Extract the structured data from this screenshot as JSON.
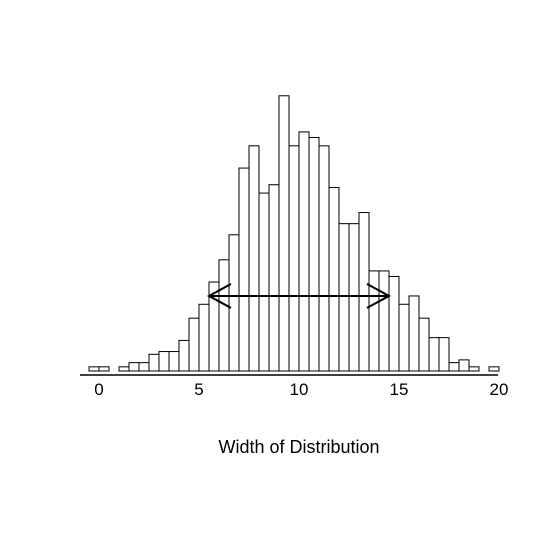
{
  "chart_data": {
    "type": "bar",
    "title": "",
    "xlabel": "Width of Distribution",
    "ylabel": "",
    "xlim": [
      -0.5,
      20
    ],
    "ylim": [
      0,
      100
    ],
    "bin_width": 0.5,
    "bin_starts": [
      -0.5,
      0,
      0.5,
      1,
      1.5,
      2,
      2.5,
      3,
      3.5,
      4,
      4.5,
      5,
      5.5,
      6,
      6.5,
      7,
      7.5,
      8,
      8.5,
      9,
      9.5,
      10,
      10.5,
      11,
      11.5,
      12,
      12.5,
      13,
      13.5,
      14,
      14.5,
      15,
      15.5,
      16,
      16.5,
      17,
      17.5,
      18,
      18.5,
      19,
      19.5
    ],
    "values": [
      1.5,
      1.5,
      0,
      1.5,
      3,
      3,
      6,
      7,
      7,
      11,
      19,
      24,
      32,
      40,
      49,
      73,
      81,
      64,
      67,
      99,
      81,
      86,
      84,
      81,
      66,
      53,
      53,
      57,
      36,
      36,
      34,
      24,
      27,
      19,
      12,
      12,
      3,
      4,
      1.5,
      0,
      1.5
    ],
    "xticks": [
      "0",
      "5",
      "10",
      "15",
      "20"
    ],
    "xtick_values": [
      0,
      5,
      10,
      15,
      20
    ],
    "annotation": {
      "type": "double-arrow",
      "x_start": 5.5,
      "x_end": 14.5,
      "y": 27
    },
    "grid": false,
    "legend": "none"
  },
  "colors": {
    "bar_fill": "#ffffff",
    "bar_stroke": "#000000",
    "axis": "#000000",
    "background": "#ffffff"
  }
}
